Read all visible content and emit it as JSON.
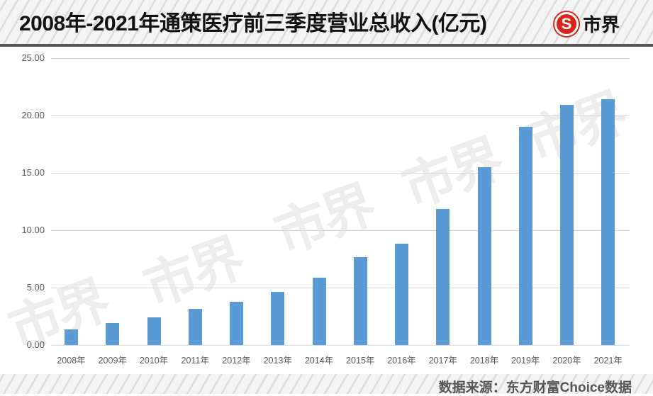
{
  "header": {
    "title": "2008年-2021年通策医疗前三季度营业总收入(亿元)",
    "logo_mark": "S",
    "logo_text": "市界"
  },
  "watermark": "市界",
  "footer": {
    "source": "数据来源：东方财富Choice数据"
  },
  "colors": {
    "bar": "#5b9bd5",
    "logo_red": "#d9261c",
    "grid": "#d9d9d9"
  },
  "chart_data": {
    "type": "bar",
    "title": "2008年-2021年通策医疗前三季度营业总收入(亿元)",
    "xlabel": "",
    "ylabel": "",
    "ylim": [
      0,
      25
    ],
    "yticks": [
      "0.00",
      "5.00",
      "10.00",
      "15.00",
      "20.00",
      "25.00"
    ],
    "grid": true,
    "legend": null,
    "categories": [
      "2008年",
      "2009年",
      "2010年",
      "2011年",
      "2012年",
      "2013年",
      "2014年",
      "2015年",
      "2016年",
      "2017年",
      "2018年",
      "2019年",
      "2020年",
      "2021年"
    ],
    "values": [
      1.36,
      1.9,
      2.4,
      3.15,
      3.77,
      4.61,
      5.85,
      7.64,
      8.83,
      11.83,
      15.47,
      18.99,
      20.9,
      21.4
    ],
    "source": "数据来源：东方财富Choice数据"
  }
}
